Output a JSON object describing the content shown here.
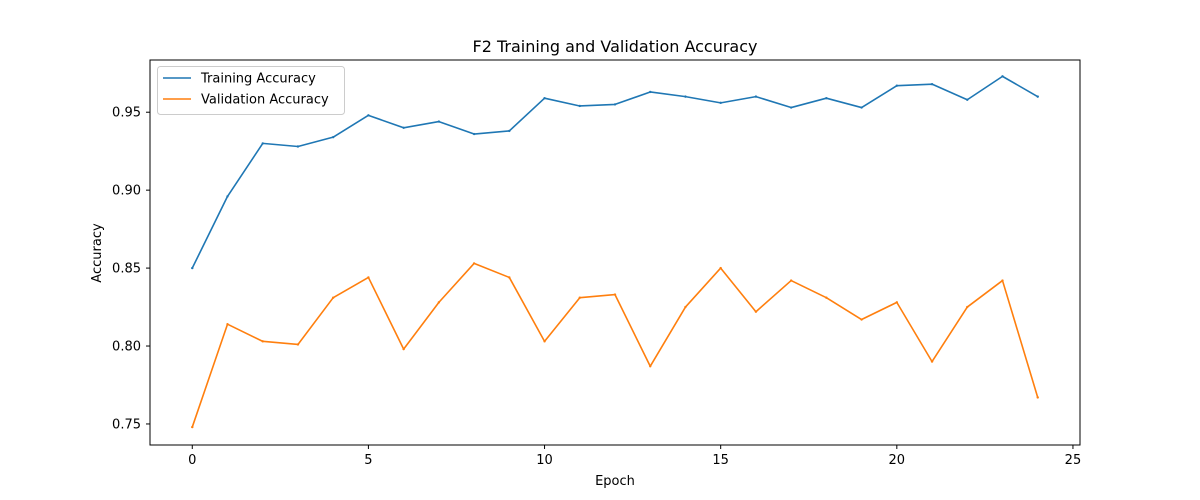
{
  "chart_data": {
    "type": "line",
    "title": "F2 Training and Validation Accuracy",
    "xlabel": "Epoch",
    "ylabel": "Accuracy",
    "xlim": [
      -1.2,
      25.2
    ],
    "ylim": [
      0.7365,
      0.9835
    ],
    "xticks": [
      0,
      5,
      10,
      15,
      20,
      25
    ],
    "yticks": [
      0.75,
      0.8,
      0.85,
      0.9,
      0.95
    ],
    "xtick_labels": [
      "0",
      "5",
      "10",
      "15",
      "20",
      "25"
    ],
    "ytick_labels": [
      "0.75",
      "0.80",
      "0.85",
      "0.90",
      "0.95"
    ],
    "grid": false,
    "legend_position": "top-left",
    "x": [
      0,
      1,
      2,
      3,
      4,
      5,
      6,
      7,
      8,
      9,
      10,
      11,
      12,
      13,
      14,
      15,
      16,
      17,
      18,
      19,
      20,
      21,
      22,
      23,
      24
    ],
    "series": [
      {
        "name": "Training Accuracy",
        "color": "#1f77b4",
        "values": [
          0.85,
          0.896,
          0.93,
          0.928,
          0.934,
          0.948,
          0.94,
          0.944,
          0.936,
          0.938,
          0.959,
          0.954,
          0.955,
          0.963,
          0.96,
          0.956,
          0.96,
          0.953,
          0.959,
          0.953,
          0.967,
          0.968,
          0.958,
          0.973,
          0.96
        ]
      },
      {
        "name": "Validation Accuracy",
        "color": "#ff7f0e",
        "values": [
          0.748,
          0.814,
          0.803,
          0.801,
          0.831,
          0.844,
          0.798,
          0.828,
          0.853,
          0.844,
          0.803,
          0.831,
          0.833,
          0.787,
          0.825,
          0.85,
          0.822,
          0.842,
          0.831,
          0.817,
          0.828,
          0.79,
          0.825,
          0.842,
          0.767
        ]
      }
    ]
  }
}
